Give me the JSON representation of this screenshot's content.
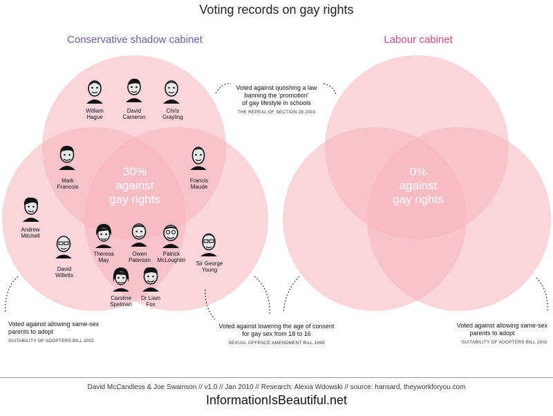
{
  "title": "Voting records on gay rights",
  "conservative": {
    "title": "Conservative shadow cabinet",
    "percent_lines": [
      "30%",
      "against",
      "gay rights"
    ],
    "people": [
      {
        "lines": [
          "William",
          "Hague"
        ]
      },
      {
        "lines": [
          "David",
          "Cameron"
        ]
      },
      {
        "lines": [
          "Chris",
          "Grayling"
        ]
      },
      {
        "lines": [
          "Mark",
          "Francois"
        ]
      },
      {
        "lines": [
          "Francis",
          "Maude"
        ]
      },
      {
        "lines": [
          "Andrew",
          "Mitchell"
        ]
      },
      {
        "lines": [
          "David",
          "Willetts"
        ]
      },
      {
        "lines": [
          "Theresa",
          "May"
        ]
      },
      {
        "lines": [
          "Owen",
          "Paterson"
        ]
      },
      {
        "lines": [
          "Patrick",
          "McLoughlin"
        ]
      },
      {
        "lines": [
          "Sir George",
          "Young"
        ]
      },
      {
        "lines": [
          "Caroline",
          "Spelman"
        ]
      },
      {
        "lines": [
          "Dr Liam",
          "Fox"
        ]
      }
    ]
  },
  "labour": {
    "title": "Labour cabinet",
    "percent_lines": [
      "0%",
      "against",
      "gay rights"
    ]
  },
  "annotations": {
    "section28": {
      "lines": [
        "Voted against quoshing a law",
        "banning the 'promotion'",
        "of gay lifestyle in schools"
      ],
      "source": "THE REPEAL OF SECTION 28 2003"
    },
    "adopt_left": {
      "lines": [
        "Voted against allowing same-sex",
        "parents to adopt"
      ],
      "source": "SUITABILITY OF ADOPTERS BILL 2002"
    },
    "consent": {
      "lines": [
        "Voted against lowering the age of consent",
        "for gay sex from 18 to 16"
      ],
      "source": "SEXUAL OFFENCE AMENDMENT BILL 1999"
    },
    "adopt_right": {
      "lines": [
        "Voted against allowing same-sex",
        "parents to adopt"
      ],
      "source": "SUITABILITY OF ADOPTERS BILL 2002"
    }
  },
  "footer": {
    "credit": "David McCandless & Joe Swainson // v1.0 // Jan 2010 // Research: Alexia Wdowski // source: hansard, theyworkforyou.com",
    "site": "InformationIsBeautiful.net"
  },
  "colors": {
    "circle_fill": "#f5b5bd",
    "conservative_title": "#6b5aa8",
    "labour_title": "#e0457b",
    "dash": "#333333"
  }
}
